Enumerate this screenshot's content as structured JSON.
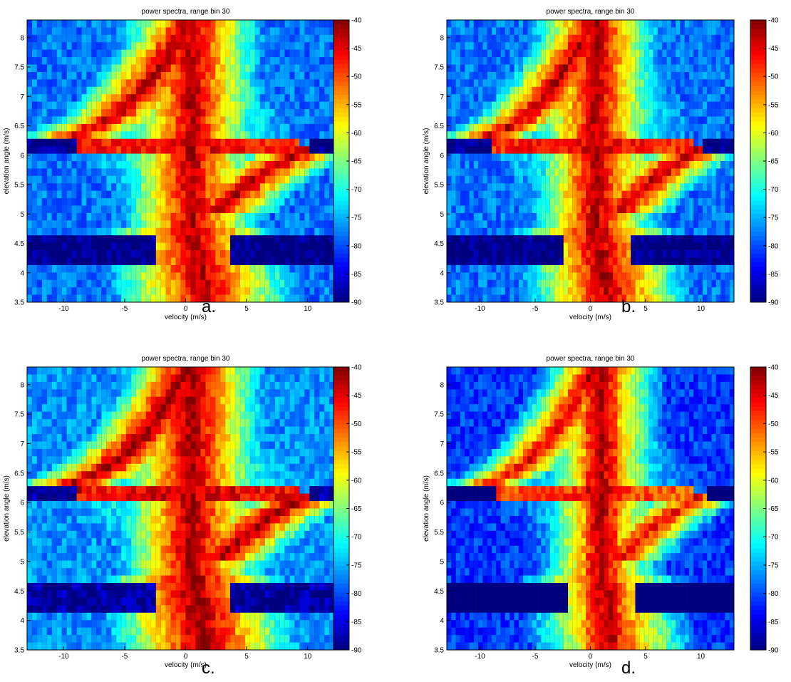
{
  "figure": {
    "panels": [
      {
        "label": "a.",
        "title": "power spectra, range bin 30",
        "xlabel": "velocity (m/s)",
        "ylabel": "elevation angle (m/s)"
      },
      {
        "label": "b.",
        "title": "power spectra, range bin 30",
        "xlabel": "velocity (m/s)",
        "ylabel": "elevation angle (m/s)"
      },
      {
        "label": "c.",
        "title": "power spectra, range bin 30",
        "xlabel": "velocity (m/s)",
        "ylabel": "elevation angle (m/s)"
      },
      {
        "label": "d.",
        "title": "power spectra, range bin 30",
        "xlabel": "velocity (m/s)",
        "ylabel": "elevation angle (m/s)"
      }
    ]
  },
  "chart_data": [
    {
      "type": "heatmap",
      "panel": "a.",
      "title": "power spectra, range bin 30",
      "xlabel": "velocity (m/s)",
      "ylabel": "elevation angle (m/s)",
      "xlim": [
        -13,
        13
      ],
      "ylim": [
        3.5,
        8.3
      ],
      "xticks": [
        -10,
        -5,
        0,
        5,
        10
      ],
      "yticks": [
        3.5,
        4,
        4.5,
        5,
        5.5,
        6,
        6.5,
        7,
        7.5,
        8
      ],
      "colorbar": {
        "range": [
          -90,
          -40
        ],
        "ticks": [
          -40,
          -45,
          -50,
          -55,
          -60,
          -65,
          -70,
          -75,
          -80,
          -85,
          -90
        ]
      },
      "colormap": "jet",
      "features": {
        "central_ridge_velocity": 0.5,
        "left_arm": {
          "elevation": 6.4,
          "velocity_extent": -9
        },
        "right_arm": {
          "elevation": 5.9,
          "velocity_extent": 9.5
        },
        "low_power_bands": [
          [
            4.1,
            4.7
          ],
          [
            6.0,
            6.3
          ]
        ]
      }
    },
    {
      "type": "heatmap",
      "panel": "b.",
      "title": "power spectra, range bin 30",
      "xlabel": "velocity (m/s)",
      "ylabel": "elevation angle (m/s)",
      "xlim": [
        -13,
        13
      ],
      "ylim": [
        3.5,
        8.3
      ],
      "xticks": [
        -10,
        -5,
        0,
        5,
        10
      ],
      "yticks": [
        3.5,
        4,
        4.5,
        5,
        5.5,
        6,
        6.5,
        7,
        7.5,
        8
      ],
      "colorbar": {
        "range": [
          -90,
          -40
        ],
        "ticks": [
          -40,
          -45,
          -50,
          -55,
          -60,
          -65,
          -70,
          -75,
          -80,
          -85,
          -90
        ]
      },
      "colormap": "jet",
      "features": {
        "central_ridge_velocity": 0.5,
        "left_arm": {
          "elevation": 6.4,
          "velocity_extent": -9
        },
        "right_arm": {
          "elevation": 5.9,
          "velocity_extent": 9.5
        },
        "low_power_bands": [
          [
            4.1,
            4.7
          ],
          [
            6.0,
            6.3
          ]
        ]
      }
    },
    {
      "type": "heatmap",
      "panel": "c.",
      "title": "power spectra, range bin 30",
      "xlabel": "velocity (m/s)",
      "ylabel": "elevation angle (m/s)",
      "xlim": [
        -13,
        13
      ],
      "ylim": [
        3.5,
        8.3
      ],
      "xticks": [
        -10,
        -5,
        0,
        5,
        10
      ],
      "yticks": [
        3.5,
        4,
        4.5,
        5,
        5.5,
        6,
        6.5,
        7,
        7.5,
        8
      ],
      "colorbar": {
        "range": [
          -90,
          -40
        ],
        "ticks": [
          -40,
          -45,
          -50,
          -55,
          -60,
          -65,
          -70,
          -75,
          -80,
          -85,
          -90
        ]
      },
      "colormap": "jet",
      "features": {
        "central_ridge_velocity": 0.5,
        "left_arm": {
          "elevation": 6.4,
          "velocity_extent": -9
        },
        "right_arm": {
          "elevation": 5.9,
          "velocity_extent": 9.5
        },
        "low_power_bands": [
          [
            4.1,
            4.7
          ],
          [
            6.0,
            6.3
          ]
        ]
      }
    },
    {
      "type": "heatmap",
      "panel": "d.",
      "title": "power spectra, range bin 30",
      "xlabel": "velocity (m/s)",
      "ylabel": "elevation angle (m/s)",
      "xlim": [
        -13,
        13
      ],
      "ylim": [
        3.5,
        8.3
      ],
      "xticks": [
        -10,
        -5,
        0,
        5,
        10
      ],
      "yticks": [
        3.5,
        4,
        4.5,
        5,
        5.5,
        6,
        6.5,
        7,
        7.5,
        8
      ],
      "colorbar": {
        "range": [
          -90,
          -40
        ],
        "ticks": [
          -40,
          -45,
          -50,
          -55,
          -60,
          -65,
          -70,
          -75,
          -80,
          -85,
          -90
        ]
      },
      "colormap": "jet",
      "features": {
        "central_ridge_velocity": 1.0,
        "left_arm": {
          "elevation": 6.4,
          "velocity_extent": -9
        },
        "right_arm": {
          "elevation": 5.9,
          "velocity_extent": 9.5
        },
        "low_power_bands": [
          [
            4.1,
            4.7
          ],
          [
            6.0,
            6.3
          ]
        ]
      }
    }
  ]
}
